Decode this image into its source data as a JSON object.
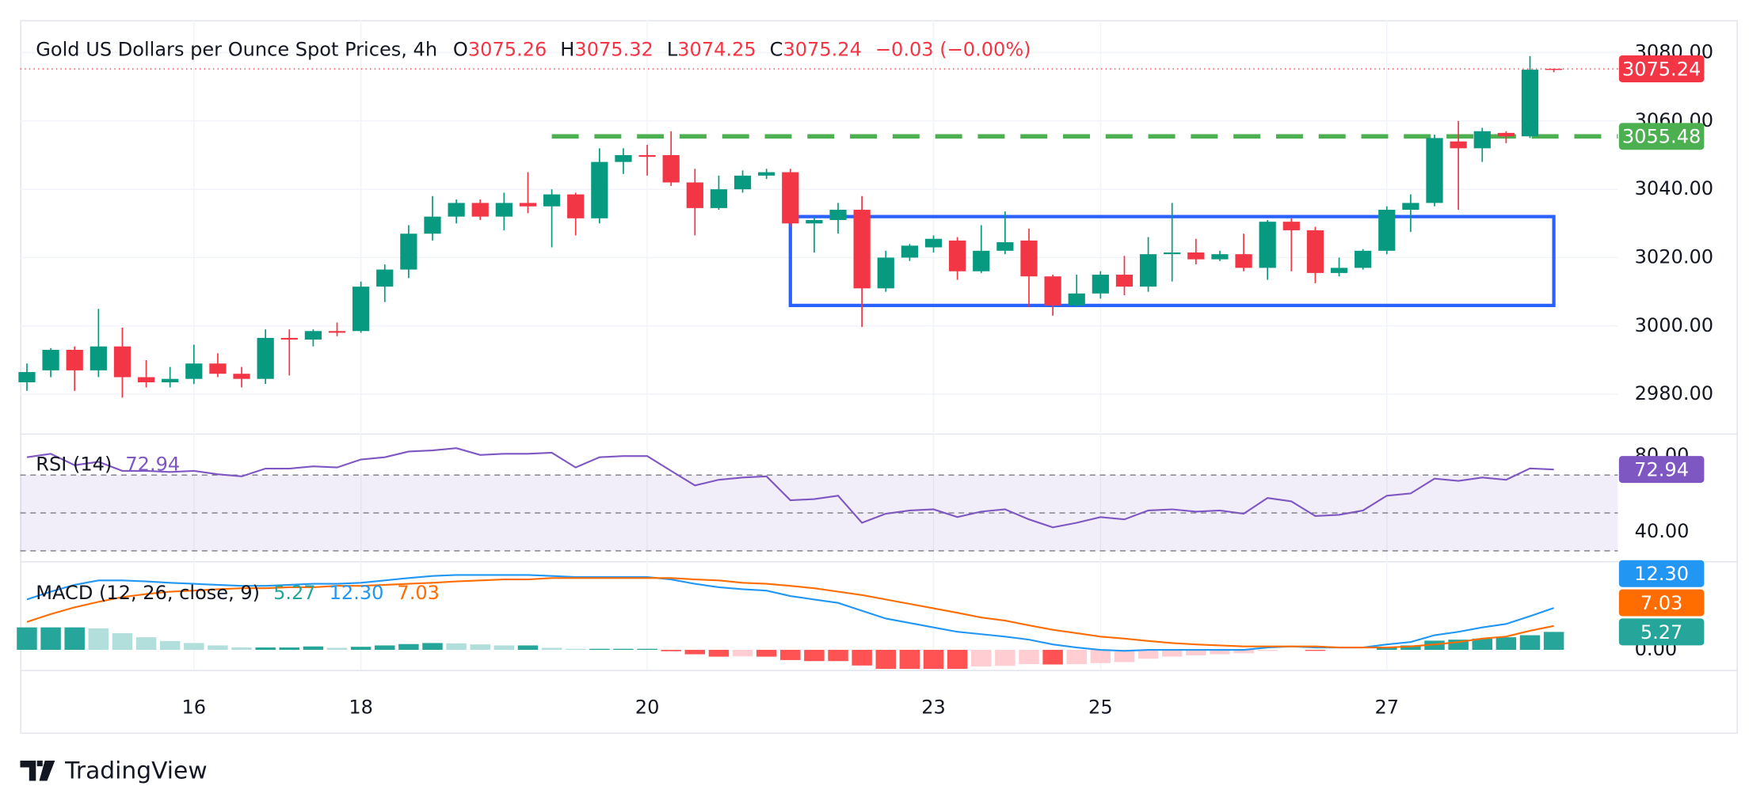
{
  "chart_data": {
    "type": "candlestick",
    "title": "Gold US Dollars per Ounce Spot Prices, 4h",
    "ohlc_legend": [
      {
        "label": "O",
        "value": 3075.26
      },
      {
        "label": "H",
        "value": 3075.32
      },
      {
        "label": "L",
        "value": 3074.25
      },
      {
        "label": "C",
        "value": 3075.24
      }
    ],
    "change": "−0.03 (−0.00%)",
    "categories": [
      null,
      null,
      null,
      null,
      null,
      null,
      null,
      "16",
      null,
      null,
      null,
      null,
      null,
      null,
      "18",
      null,
      null,
      null,
      null,
      null,
      null,
      null,
      null,
      null,
      null,
      null,
      "20",
      null,
      null,
      null,
      null,
      null,
      null,
      null,
      null,
      null,
      null,
      null,
      "23",
      null,
      null,
      null,
      null,
      null,
      null,
      "25",
      null,
      null,
      null,
      null,
      null,
      null,
      null,
      null,
      null,
      null,
      null,
      "27",
      null,
      null,
      null,
      null,
      null,
      null,
      null
    ],
    "open": [
      2983.5,
      2987,
      2993,
      2987,
      2994,
      2985,
      2983.5,
      2984.5,
      2989,
      2986,
      2984.5,
      2996.5,
      2996,
      2998.5,
      2998.5,
      3011.5,
      3016.5,
      3027,
      3032,
      3036,
      3032,
      3036,
      3035,
      3038.5,
      3031.5,
      3048,
      3050,
      3050,
      3042,
      3034.5,
      3040,
      3044,
      3045,
      3030,
      3031,
      3034,
      3011,
      3020,
      3023,
      3025,
      3016,
      3022,
      3025,
      3014.5,
      3006,
      3009.5,
      3015,
      3011.5,
      3021,
      3021.5,
      3019.5,
      3021,
      3017,
      3030.5,
      3028,
      3015.5,
      3017,
      3022,
      3034,
      3036,
      3054,
      3052,
      3056.5,
      3055.5,
      3075.26
    ],
    "high": [
      2989,
      2993.5,
      2994,
      3005,
      2999.5,
      2990,
      2988,
      2994.5,
      2992,
      2988,
      2999,
      2999,
      2999,
      3001,
      3013,
      3018,
      3029.5,
      3038,
      3037,
      3037,
      3039,
      3045,
      3040,
      3039,
      3052,
      3052,
      3053,
      3057,
      3046,
      3044,
      3045.5,
      3046,
      3046,
      3032,
      3036,
      3038,
      3022,
      3024,
      3026.5,
      3026,
      3029.5,
      3033.5,
      3028.5,
      3015,
      3015,
      3016,
      3020.5,
      3026,
      3036,
      3025.5,
      3022,
      3027,
      3031,
      3031.5,
      3029,
      3020,
      3022.5,
      3035,
      3038.5,
      3056,
      3060,
      3058,
      3057,
      3079,
      3075.32
    ],
    "low": [
      2981,
      2985,
      2981,
      2985,
      2979,
      2982,
      2982,
      2983,
      2985,
      2982,
      2983,
      2985.5,
      2994,
      2997,
      2998,
      3007,
      3014,
      3025,
      3030,
      3031,
      3028,
      3033,
      3023,
      3026.5,
      3030,
      3044.5,
      3044,
      3041,
      3026.5,
      3034,
      3039,
      3043,
      3029,
      3021.5,
      3027,
      2999.7,
      3010,
      3019,
      3021.5,
      3013.5,
      3015.5,
      3021,
      3005.5,
      3003,
      3005.5,
      3008,
      3009,
      3010,
      3013,
      3018,
      3019,
      3016,
      3013.5,
      3016,
      3012.5,
      3014.5,
      3016.5,
      3021,
      3027.5,
      3035,
      3034,
      3048,
      3053.5,
      3055,
      3074.25
    ],
    "close": [
      2986.5,
      2993,
      2987,
      2994,
      2985,
      2983.5,
      2984.5,
      2989,
      2986,
      2984.5,
      2996.5,
      2996,
      2998.5,
      2998,
      3011.5,
      3016.5,
      3027,
      3032,
      3036,
      3032,
      3036,
      3035,
      3038.5,
      3031.5,
      3048,
      3050,
      3049.5,
      3042,
      3034.5,
      3040,
      3044,
      3045,
      3030,
      3031,
      3034,
      3011,
      3020,
      3023.5,
      3025.5,
      3016,
      3022,
      3024.5,
      3014.5,
      3006,
      3009.5,
      3015,
      3011.5,
      3021,
      3021.5,
      3019.5,
      3021,
      3017,
      3030.5,
      3028,
      3015.5,
      3017,
      3022,
      3034,
      3036,
      3055,
      3052,
      3057,
      3055.5,
      3075,
      3075.24
    ],
    "up_color": "#089981",
    "down_color": "#f23645",
    "ylim": [
      2968.5,
      3089.5
    ],
    "yticks": [
      {
        "value": 2980,
        "label": "2980.00"
      },
      {
        "value": 3000,
        "label": "3000.00"
      },
      {
        "value": 3020,
        "label": "3020.00"
      },
      {
        "value": 3040,
        "label": "3040.00"
      },
      {
        "value": 3060,
        "label": "3060.00"
      },
      {
        "value": 3080,
        "label": "3080.00"
      }
    ],
    "grid": true,
    "level_line": {
      "value": 3055.48,
      "start": 22,
      "color": "#4caf50"
    },
    "range_box": {
      "low": 3006,
      "high": 3032,
      "start": 32,
      "end": 64,
      "color": "#2962ff"
    },
    "rsi": {
      "title": "RSI (14)",
      "color": "#7e57c2",
      "values": [
        79.4,
        81.2,
        75.2,
        77.0,
        72.2,
        72.2,
        71.6,
        72.2,
        70.4,
        69.3,
        73.4,
        73.4,
        74.6,
        74.0,
        78.2,
        79.4,
        82.4,
        83.0,
        84.2,
        80.6,
        81.2,
        81.2,
        81.8,
        74.0,
        79.4,
        80.0,
        80.0,
        72.2,
        64.5,
        67.5,
        68.7,
        69.3,
        56.7,
        57.3,
        59.1,
        44.8,
        49.6,
        51.3,
        51.9,
        47.8,
        50.7,
        51.9,
        46.6,
        42.4,
        44.8,
        47.8,
        46.6,
        51.3,
        51.9,
        50.7,
        51.3,
        49.6,
        57.9,
        56.1,
        48.4,
        49.0,
        51.3,
        59.1,
        60.3,
        68.1,
        66.9,
        68.7,
        67.5,
        73.5,
        72.94
      ],
      "ylim": [
        24.5,
        91.3
      ],
      "yticks": [
        {
          "value": 40,
          "label": "40.00"
        },
        {
          "value": 80,
          "label": "80.00"
        }
      ],
      "levels": [
        30,
        50,
        70
      ]
    },
    "macd": {
      "title": "MACD (12, 26, close, 9)",
      "ylim": [
        -5.9,
        25.7
      ],
      "yticks": [
        {
          "value": 0,
          "label": "0.00"
        }
      ],
      "histogram_colors": {
        "up_rising": "#26a69a",
        "up_falling": "#b2dfdb",
        "down_falling": "#ff5252",
        "down_rising": "#ffcdd2"
      },
      "series": [
        {
          "kind": "histogram",
          "color": "#26a69a",
          "values": [
            6.6,
            6.6,
            6.6,
            6.3,
            4.9,
            3.7,
            2.6,
            2.0,
            1.3,
            0.7,
            0.7,
            0.7,
            1.0,
            0.6,
            0.9,
            1.3,
            1.7,
            2.0,
            1.9,
            1.6,
            1.3,
            1.3,
            0.6,
            0.3,
            0.3,
            0.3,
            0.3,
            -0.4,
            -1.3,
            -2.0,
            -1.9,
            -2.0,
            -3.0,
            -3.3,
            -3.3,
            -4.6,
            -5.6,
            -5.6,
            -5.6,
            -5.6,
            -4.9,
            -4.7,
            -4.2,
            -4.3,
            -4.2,
            -3.9,
            -3.6,
            -2.6,
            -2.0,
            -1.6,
            -1.3,
            -1.0,
            -0.3,
            0.0,
            -0.3,
            0.0,
            0.0,
            0.9,
            1.3,
            2.7,
            3.0,
            3.3,
            3.7,
            4.3,
            5.27
          ]
        },
        {
          "kind": "line",
          "color": "#2196f3",
          "values": [
            14.8,
            17.1,
            19.1,
            20.4,
            20.4,
            20.1,
            19.7,
            19.4,
            19.1,
            18.8,
            18.8,
            19.1,
            19.4,
            19.4,
            19.7,
            20.4,
            21.1,
            21.7,
            22.0,
            22.0,
            22.0,
            22.0,
            21.7,
            21.4,
            21.4,
            21.4,
            21.4,
            20.7,
            19.4,
            18.4,
            17.8,
            17.4,
            15.8,
            14.8,
            13.8,
            11.5,
            9.2,
            7.9,
            6.6,
            5.3,
            4.6,
            3.9,
            3.0,
            1.6,
            0.7,
            0,
            -0.3,
            0,
            0,
            0,
            0,
            0,
            0.7,
            1.0,
            0.7,
            0.7,
            0.7,
            1.6,
            2.3,
            4.3,
            5.3,
            6.6,
            7.6,
            9.9,
            12.3
          ],
          "value_labels": [
            null,
            null,
            null,
            null,
            null,
            null,
            null,
            null,
            null,
            null,
            null,
            null,
            null,
            null,
            null,
            null,
            null,
            null,
            null,
            null,
            null,
            null,
            null,
            null,
            null,
            null,
            null,
            null,
            null,
            null,
            null,
            null,
            null,
            null,
            null,
            null,
            null,
            null,
            null,
            null,
            null,
            null,
            null,
            null,
            null,
            null,
            null,
            null,
            null,
            null,
            null,
            null,
            null,
            null,
            null,
            null,
            null,
            null,
            null,
            null,
            null,
            null,
            null,
            null,
            "12.30"
          ]
        },
        {
          "kind": "line",
          "color": "#ff6d00",
          "values": [
            8.2,
            10.5,
            12.5,
            14.1,
            15.5,
            16.4,
            17.1,
            17.4,
            17.8,
            18.1,
            18.1,
            18.4,
            18.4,
            18.8,
            18.8,
            19.1,
            19.4,
            19.7,
            20.1,
            20.4,
            20.7,
            20.7,
            21.1,
            21.1,
            21.1,
            21.1,
            21.1,
            21.1,
            20.7,
            20.4,
            19.7,
            19.4,
            18.8,
            18.1,
            17.1,
            16.1,
            14.8,
            13.5,
            12.2,
            10.9,
            9.5,
            8.6,
            7.2,
            5.9,
            4.9,
            3.9,
            3.3,
            2.6,
            2.0,
            1.6,
            1.3,
            1.0,
            1.0,
            1.0,
            1.0,
            0.7,
            0.7,
            0.7,
            1.0,
            1.6,
            2.3,
            3.3,
            3.9,
            5.6,
            7.03
          ]
        }
      ]
    },
    "branding": "TradingView"
  }
}
